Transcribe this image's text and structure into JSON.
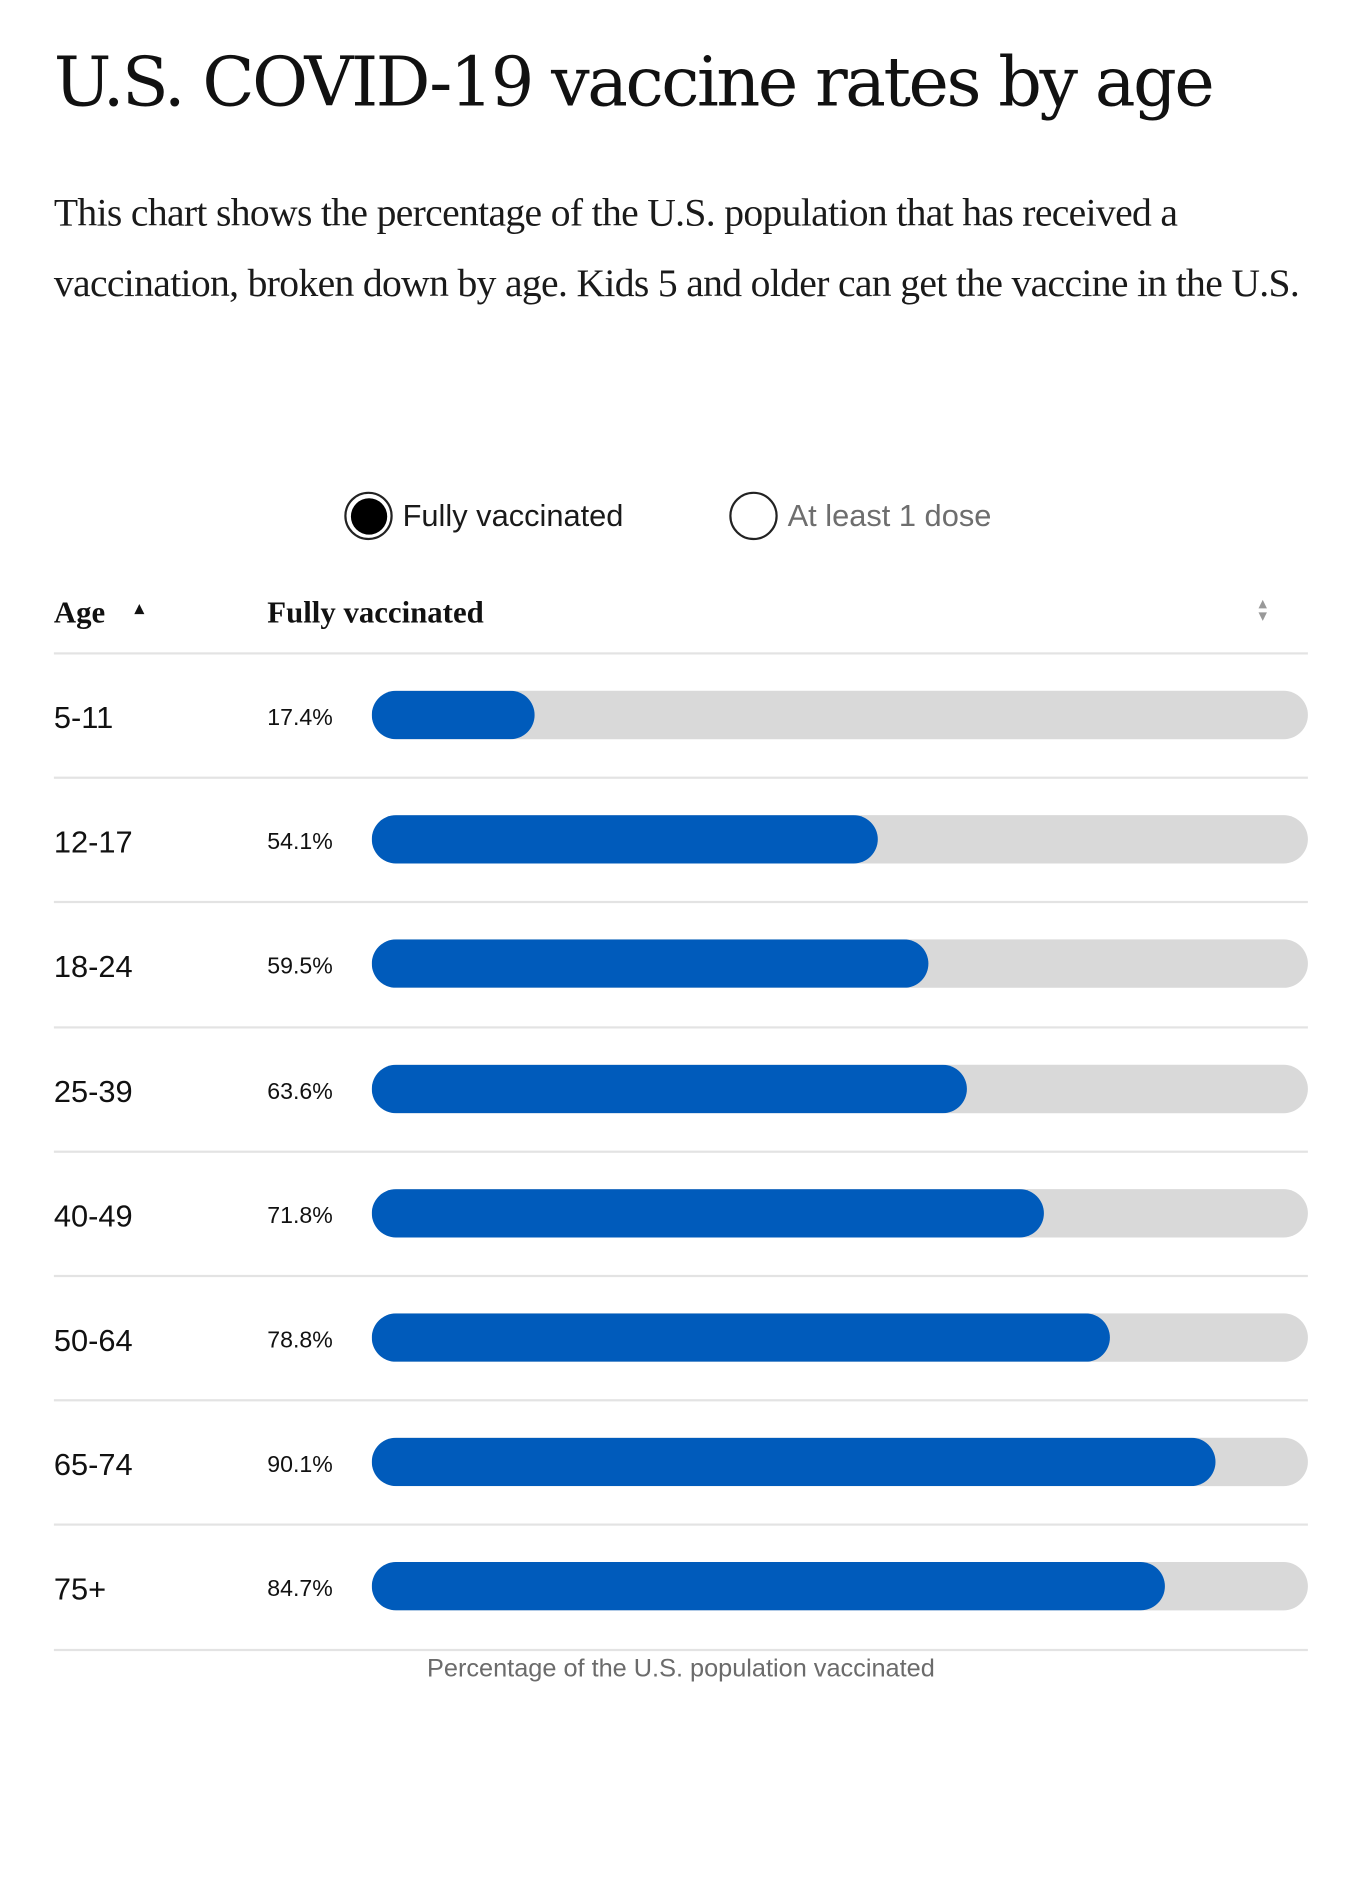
{
  "title": "U.S. COVID-19 vaccine rates by age",
  "description": "This chart shows the percentage of the U.S. population that has received a vaccination, broken down by age. Kids 5 and older can get the vaccine in the U.S.",
  "toggle": {
    "options": [
      {
        "label": "Fully vaccinated",
        "selected": true
      },
      {
        "label": "At least 1 dose",
        "selected": false
      }
    ]
  },
  "table": {
    "age_header": "Age",
    "value_header": "Fully vaccinated",
    "age_sort": "ascending",
    "value_sort": "none"
  },
  "colors": {
    "bar": "#005bbb",
    "track": "#d9d9d9"
  },
  "footer": "Percentage of the U.S. population vaccinated",
  "chart_data": {
    "type": "bar",
    "orientation": "horizontal",
    "categories": [
      "5-11",
      "12-17",
      "18-24",
      "25-39",
      "40-49",
      "50-64",
      "65-74",
      "75+"
    ],
    "values": [
      17.4,
      54.1,
      59.5,
      63.6,
      71.8,
      78.8,
      90.1,
      84.7
    ],
    "value_labels": [
      "17.4%",
      "54.1%",
      "59.5%",
      "63.6%",
      "71.8%",
      "78.8%",
      "90.1%",
      "84.7%"
    ],
    "xlim": [
      0,
      100
    ],
    "title": "U.S. COVID-19 vaccine rates by age",
    "xlabel": "Percentage of the U.S. population vaccinated",
    "ylabel": "Age"
  }
}
